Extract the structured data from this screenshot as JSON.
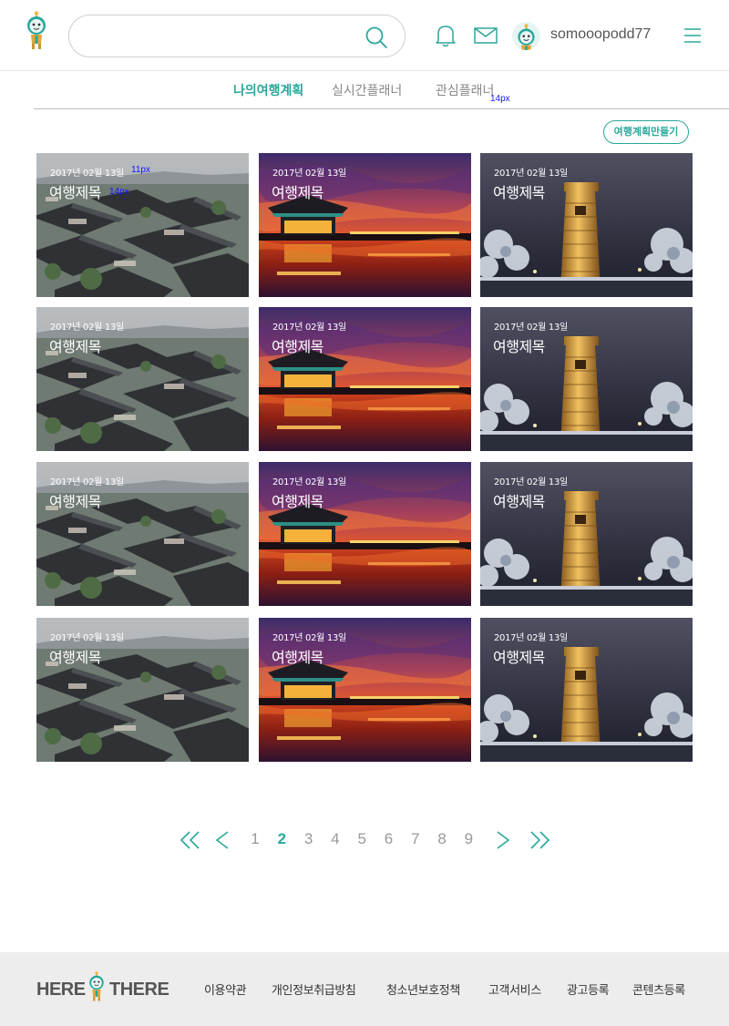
{
  "header": {
    "search": {
      "value": "",
      "placeholder": ""
    },
    "username": "somooopodd77"
  },
  "tabs": [
    {
      "label": "나의여행계획",
      "active": true
    },
    {
      "label": "실시간플래너",
      "active": false
    },
    {
      "label": "관심플래너",
      "active": false
    }
  ],
  "annotations": {
    "tabs_font": "14px",
    "card_date_font": "11px",
    "card_title_font": "14px"
  },
  "create_button": "여행계획만들기",
  "cards": [
    {
      "date": "2017년 02월 13일",
      "title": "여행제목",
      "image": "hanok-village"
    },
    {
      "date": "2017년 02월 13일",
      "title": "여행제목",
      "image": "palace-sunset"
    },
    {
      "date": "2017년 02월 13일",
      "title": "여행제목",
      "image": "cheomseongdae-night"
    },
    {
      "date": "2017년 02월 13일",
      "title": "여행제목",
      "image": "hanok-village"
    },
    {
      "date": "2017년 02월 13일",
      "title": "여행제목",
      "image": "palace-sunset"
    },
    {
      "date": "2017년 02월 13일",
      "title": "여행제목",
      "image": "cheomseongdae-night"
    },
    {
      "date": "2017년 02월 13일",
      "title": "여행제목",
      "image": "hanok-village"
    },
    {
      "date": "2017년 02월 13일",
      "title": "여행제목",
      "image": "palace-sunset"
    },
    {
      "date": "2017년 02월 13일",
      "title": "여행제목",
      "image": "cheomseongdae-night"
    },
    {
      "date": "2017년 02월 13일",
      "title": "여행제목",
      "image": "hanok-village"
    },
    {
      "date": "2017년 02월 13일",
      "title": "여행제목",
      "image": "palace-sunset"
    },
    {
      "date": "2017년 02월 13일",
      "title": "여행제목",
      "image": "cheomseongdae-night"
    }
  ],
  "pagination": {
    "pages": [
      "1",
      "2",
      "3",
      "4",
      "5",
      "6",
      "7",
      "8",
      "9"
    ],
    "current": "2"
  },
  "footer": {
    "logo_left": "HERE",
    "logo_right": "THERE",
    "links": [
      "이용약관",
      "개인정보취급방침",
      "청소년보호정책",
      "고객서비스",
      "광고등록",
      "콘텐츠등록"
    ]
  },
  "colors": {
    "accent": "#2aa79b",
    "footer_bg": "#ededed"
  },
  "icons": [
    "mascot-logo-icon",
    "search-icon",
    "bell-icon",
    "mail-icon",
    "avatar-icon",
    "hamburger-menu-icon",
    "double-chevron-left-icon",
    "chevron-left-icon",
    "chevron-right-icon",
    "double-chevron-right-icon"
  ]
}
